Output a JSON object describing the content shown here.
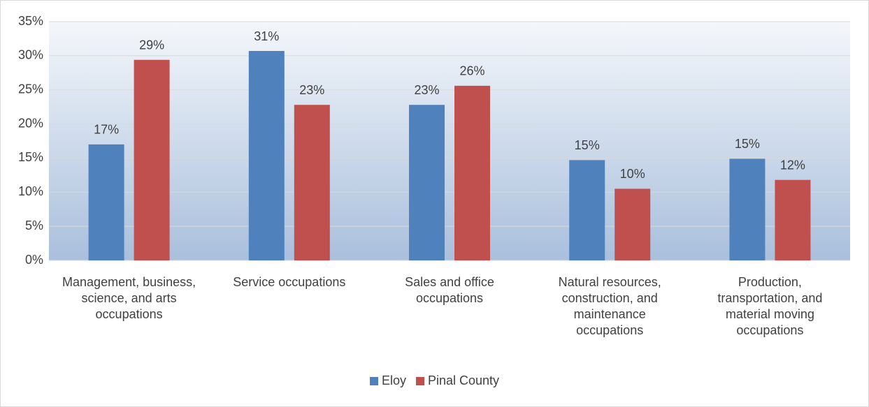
{
  "chart_data": {
    "type": "bar",
    "categories": [
      "Management, business, science, and arts occupations",
      "Service occupations",
      "Sales and office occupations",
      "Natural resources, construction, and maintenance occupations",
      "Production, transportation, and material moving occupations"
    ],
    "series": [
      {
        "name": "Eloy",
        "color": "#4f81bd",
        "values": [
          17.0,
          30.7,
          22.8,
          14.7,
          14.9
        ],
        "value_labels": [
          "17%",
          "31%",
          "23%",
          "15%",
          "15%"
        ]
      },
      {
        "name": "Pinal County",
        "color": "#c0504d",
        "values": [
          29.4,
          22.8,
          25.6,
          10.5,
          11.8
        ],
        "value_labels": [
          "29%",
          "23%",
          "26%",
          "10%",
          "12%"
        ]
      }
    ],
    "ylim": [
      0,
      35
    ],
    "yticks": [
      {
        "value": 0,
        "label": "0%"
      },
      {
        "value": 5,
        "label": "5%"
      },
      {
        "value": 10,
        "label": "10%"
      },
      {
        "value": 15,
        "label": "15%"
      },
      {
        "value": 20,
        "label": "20%"
      },
      {
        "value": 25,
        "label": "25%"
      },
      {
        "value": 30,
        "label": "30%"
      },
      {
        "value": 35,
        "label": "35%"
      }
    ],
    "grid": true,
    "legend": "bottom"
  }
}
